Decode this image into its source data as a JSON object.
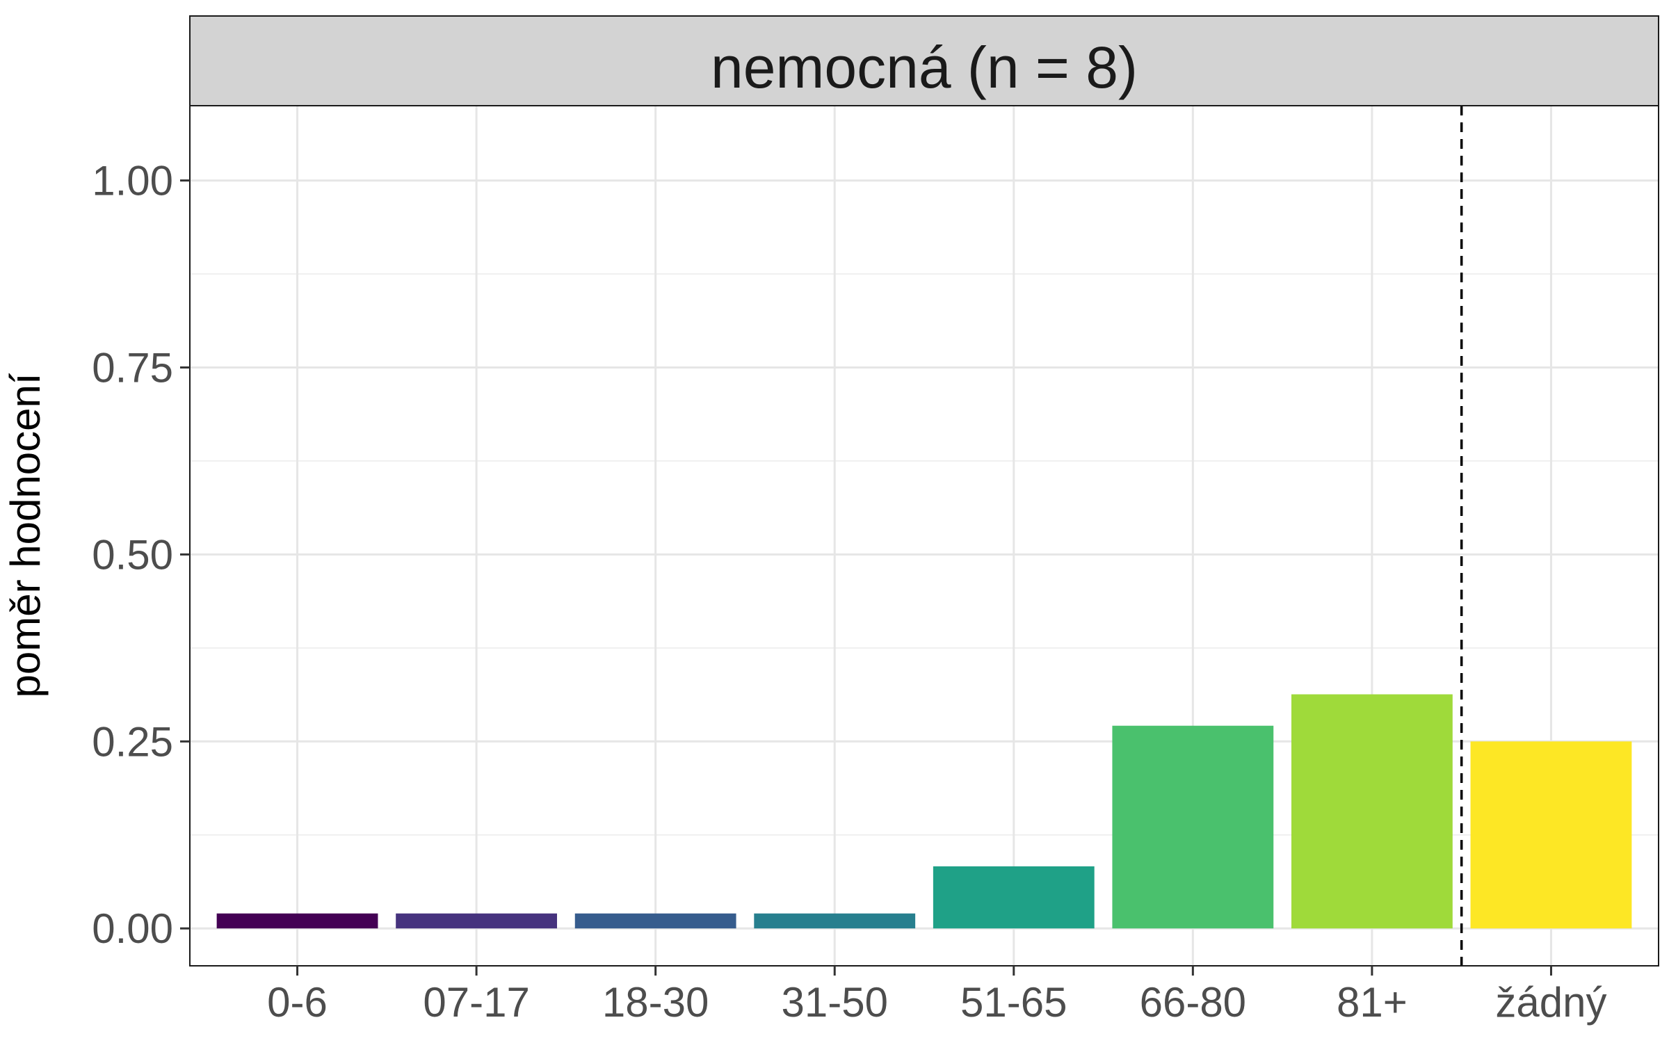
{
  "chart_data": {
    "type": "bar",
    "facet_title": "nemocná (n = 8)",
    "ylabel": "poměr hodnocení",
    "xlabel": "",
    "ylim": [
      -0.05,
      1.1
    ],
    "yticks": [
      0.0,
      0.25,
      0.5,
      0.75,
      1.0
    ],
    "ytick_labels": [
      "0.00",
      "0.25",
      "0.50",
      "0.75",
      "1.00"
    ],
    "categories": [
      "0-6",
      "07-17",
      "18-30",
      "31-50",
      "51-65",
      "66-80",
      "81+",
      "žádný"
    ],
    "values": [
      0.02,
      0.02,
      0.02,
      0.02,
      0.083,
      0.271,
      0.313,
      0.25
    ],
    "colors": [
      "#440154",
      "#46337E",
      "#365C8D",
      "#277F8E",
      "#1FA187",
      "#4AC16D",
      "#9FDA3A",
      "#FDE725"
    ],
    "reference_line": {
      "between": [
        "81+",
        "žádný"
      ],
      "style": "dashed",
      "color": "#000000"
    },
    "grid": true,
    "legend": "none"
  }
}
